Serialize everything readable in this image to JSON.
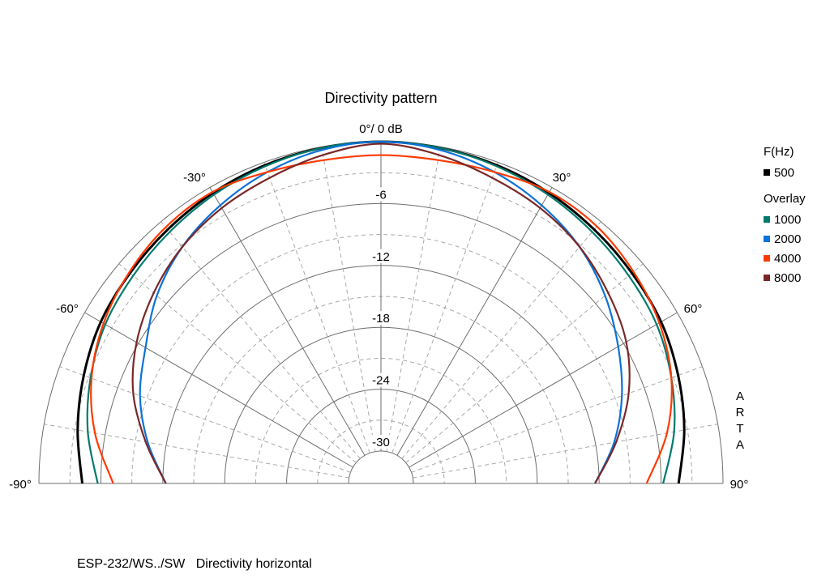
{
  "chart_data": {
    "type": "polar",
    "title": "Directivity pattern",
    "top_label": "0°/ 0 dB",
    "footer": "ESP-232/WS../SW   Directivity horizontal",
    "watermark": "ARTA",
    "angle_labels": [
      "-90°",
      "-60°",
      "-30°",
      "30°",
      "60°",
      "90°"
    ],
    "radial_labels": [
      "-6",
      "-12",
      "-18",
      "-24",
      "-30"
    ],
    "radial_range_db": [
      -30,
      0
    ],
    "angle_range_deg": [
      -90,
      90
    ],
    "grid": true,
    "legend": {
      "placement": "right",
      "header": "F(Hz)",
      "overlay_label": "Overlay"
    },
    "angles": [
      -90,
      -80,
      -70,
      -60,
      -50,
      -40,
      -30,
      -20,
      -10,
      0,
      10,
      20,
      30,
      40,
      50,
      60,
      70,
      80,
      90
    ],
    "series": [
      {
        "name": "500",
        "color": "#000000",
        "values": [
          -4.2,
          -3.3,
          -2.5,
          -1.8,
          -1.4,
          -1.0,
          -0.6,
          -0.3,
          -0.1,
          0,
          -0.1,
          -0.3,
          -0.6,
          -1.0,
          -1.4,
          -1.8,
          -2.5,
          -3.3,
          -4.3
        ]
      },
      {
        "name": "1000",
        "color": "#007a6c",
        "values": [
          -5.7,
          -4.3,
          -3.2,
          -2.3,
          -1.8,
          -1.3,
          -0.8,
          -0.4,
          -0.1,
          0,
          -0.1,
          -0.4,
          -0.8,
          -1.3,
          -1.8,
          -2.3,
          -3.2,
          -4.3,
          -5.8
        ]
      },
      {
        "name": "2000",
        "color": "#0a72d8",
        "values": [
          -12.3,
          -10.2,
          -8.3,
          -6.8,
          -4.8,
          -3.2,
          -2.0,
          -1.0,
          -0.3,
          0,
          -0.3,
          -1.0,
          -2.0,
          -3.2,
          -4.8,
          -6.6,
          -8.3,
          -10.2,
          -12.4
        ]
      },
      {
        "name": "4000",
        "color": "#ff3a00",
        "values": [
          -7.2,
          -5.0,
          -3.3,
          -2.1,
          -1.3,
          -0.7,
          -0.5,
          -1.0,
          -1.3,
          -1.3,
          -1.3,
          -1.0,
          -0.5,
          -0.6,
          -1.2,
          -2.0,
          -3.2,
          -5.0,
          -7.4
        ]
      },
      {
        "name": "8000",
        "color": "#7a2828",
        "values": [
          -12.3,
          -10.0,
          -7.6,
          -5.8,
          -4.4,
          -3.2,
          -2.3,
          -1.6,
          -0.8,
          -0.2,
          -0.8,
          -1.6,
          -2.3,
          -3.2,
          -4.4,
          -5.7,
          -7.6,
          -10.0,
          -12.4
        ]
      }
    ]
  }
}
